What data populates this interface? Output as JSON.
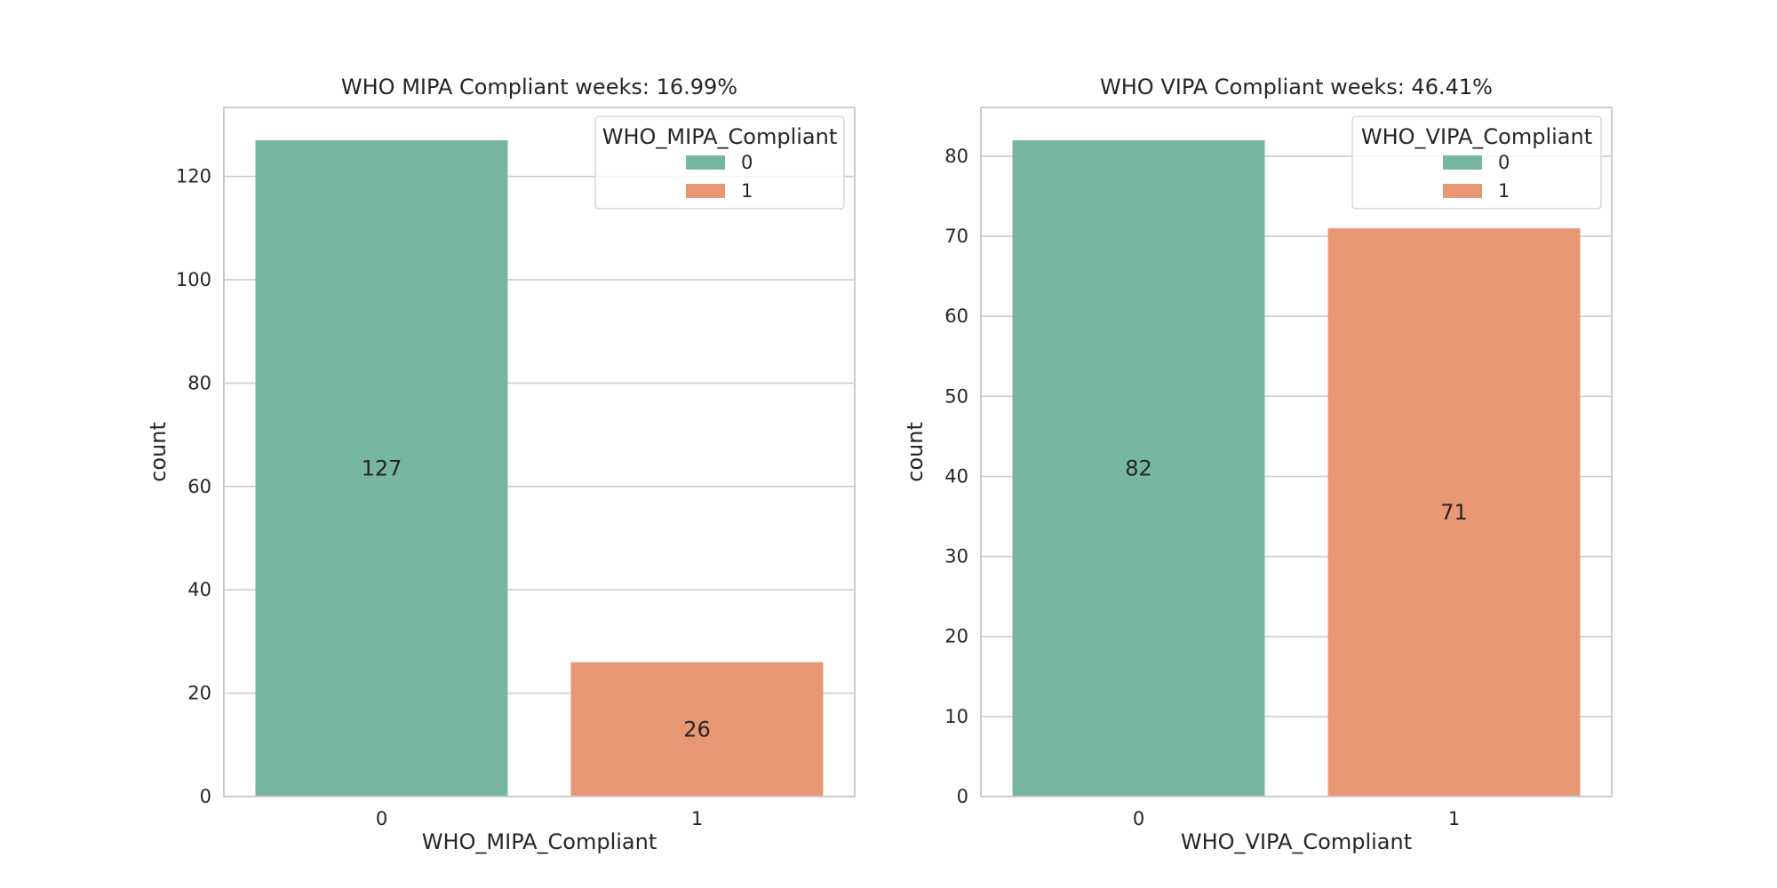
{
  "chart_data": [
    {
      "type": "bar",
      "title": "WHO MIPA Compliant weeks: 16.99%",
      "xlabel": "WHO_MIPA_Compliant",
      "ylabel": "count",
      "categories": [
        "0",
        "1"
      ],
      "values": [
        127,
        26
      ],
      "data_labels": [
        "127",
        "26"
      ],
      "ylim": [
        0,
        133.35
      ],
      "yticks": [
        0,
        20,
        40,
        60,
        80,
        100,
        120
      ],
      "grid": true,
      "legend": {
        "title": "WHO_MIPA_Compliant",
        "entries": [
          "0",
          "1"
        ],
        "placement": "top-right"
      },
      "colors": [
        "#76b6a2",
        "#e89774"
      ]
    },
    {
      "type": "bar",
      "title": "WHO VIPA Compliant weeks: 46.41%",
      "xlabel": "WHO_VIPA_Compliant",
      "ylabel": "count",
      "categories": [
        "0",
        "1"
      ],
      "values": [
        82,
        71
      ],
      "data_labels": [
        "82",
        "71"
      ],
      "ylim": [
        0,
        86.1
      ],
      "yticks": [
        0,
        10,
        20,
        30,
        40,
        50,
        60,
        70,
        80
      ],
      "grid": true,
      "legend": {
        "title": "WHO_VIPA_Compliant",
        "entries": [
          "0",
          "1"
        ],
        "placement": "top-right"
      },
      "colors": [
        "#76b6a2",
        "#e89774"
      ]
    }
  ]
}
